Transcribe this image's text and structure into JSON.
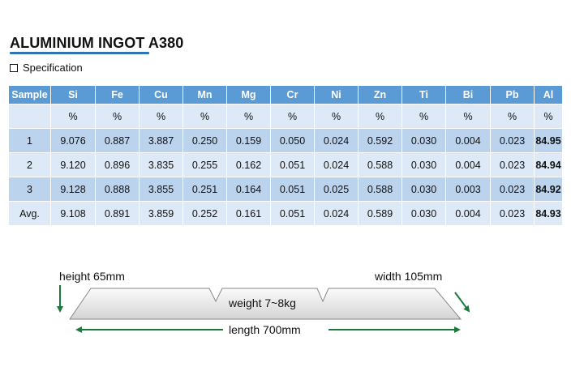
{
  "title": "ALUMINIUM INGOT A380",
  "section_label": "Specification",
  "table": {
    "headers": [
      "Sample",
      "Si",
      "Fe",
      "Cu",
      "Mn",
      "Mg",
      "Cr",
      "Ni",
      "Zn",
      "Ti",
      "Bi",
      "Pb",
      "Al"
    ],
    "units": [
      "",
      "%",
      "%",
      "%",
      "%",
      "%",
      "%",
      "%",
      "%",
      "%",
      "%",
      "%",
      "%"
    ],
    "rows": [
      [
        "1",
        "9.076",
        "0.887",
        "3.887",
        "0.250",
        "0.159",
        "0.050",
        "0.024",
        "0.592",
        "0.030",
        "0.004",
        "0.023",
        "84.95"
      ],
      [
        "2",
        "9.120",
        "0.896",
        "3.835",
        "0.255",
        "0.162",
        "0.051",
        "0.024",
        "0.588",
        "0.030",
        "0.004",
        "0.023",
        "84.94"
      ],
      [
        "3",
        "9.128",
        "0.888",
        "3.855",
        "0.251",
        "0.164",
        "0.051",
        "0.025",
        "0.588",
        "0.030",
        "0.003",
        "0.023",
        "84.92"
      ],
      [
        "Avg.",
        "9.108",
        "0.891",
        "3.859",
        "0.252",
        "0.161",
        "0.051",
        "0.024",
        "0.589",
        "0.030",
        "0.004",
        "0.023",
        "84.93"
      ]
    ]
  },
  "diagram": {
    "height_label": "height 65mm",
    "width_label": "width 105mm",
    "weight_label": "weight 7~8kg",
    "length_label": "length 700mm"
  },
  "colors": {
    "header_bg": "#5b9bd5",
    "row_light": "#dde9f6",
    "row_dark": "#bcd3ee",
    "arrow_green": "#1e7a3a",
    "underline_blue": "#2e75b6"
  }
}
